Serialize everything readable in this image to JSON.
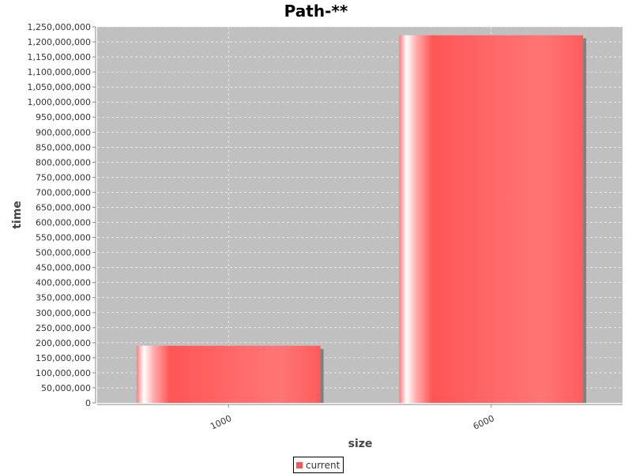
{
  "chart_data": {
    "type": "bar",
    "title": "Path-**",
    "xlabel": "size",
    "ylabel": "time",
    "categories": [
      "1000",
      "6000"
    ],
    "series": [
      {
        "name": "current",
        "values": [
          190000000,
          1222000000
        ],
        "color": "#ff5555"
      }
    ],
    "ylim": [
      0,
      1250000000
    ],
    "ytick_step": 50000000,
    "grid": true,
    "legend_position": "bottom-center",
    "plot_background": "#c0c0c0"
  }
}
